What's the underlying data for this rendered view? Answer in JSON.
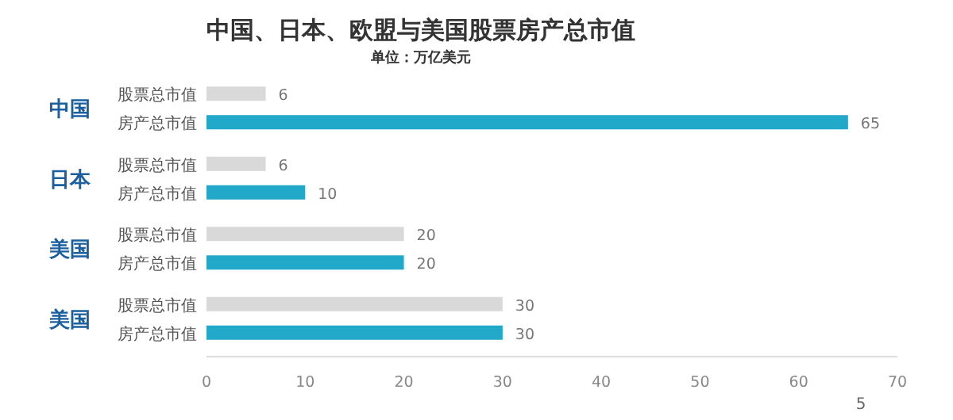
{
  "chart_data": {
    "type": "bar",
    "orientation": "horizontal",
    "title": "中国、日本、欧盟与美国股票房产总市值",
    "subtitle": "单位：万亿美元",
    "categories": [
      "中国",
      "日本",
      "美国",
      "美国"
    ],
    "series": [
      {
        "name": "股票总市值",
        "color": "#d9d9d9",
        "values": [
          6,
          6,
          20,
          30
        ]
      },
      {
        "name": "房产总市值",
        "color": "#22a8c8",
        "values": [
          65,
          10,
          20,
          30
        ]
      }
    ],
    "xlim": [
      0,
      70
    ],
    "xticks": [
      0,
      10,
      20,
      30,
      40,
      50,
      60,
      70
    ],
    "data_labels": true,
    "grid": false,
    "legend": false,
    "annotations": [
      "5"
    ]
  }
}
